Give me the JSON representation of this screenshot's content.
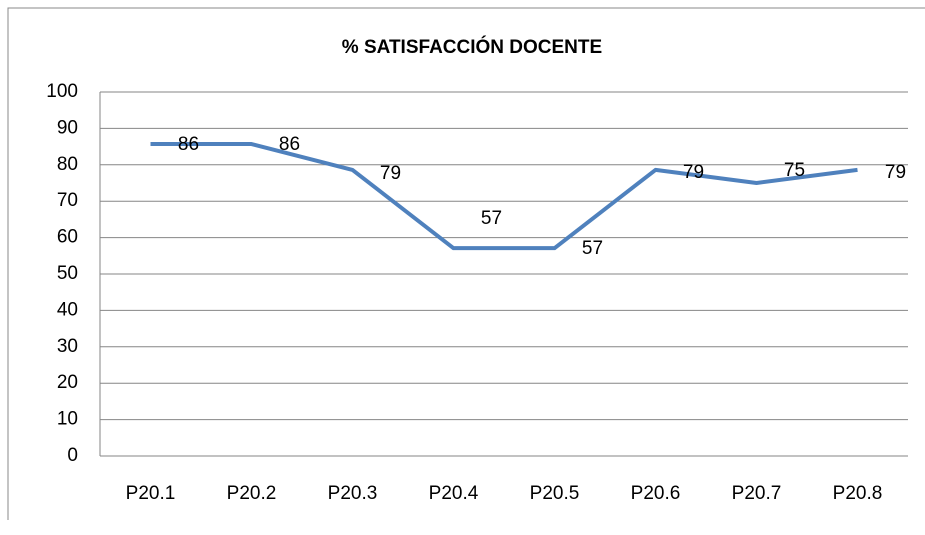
{
  "chart_data": {
    "type": "line",
    "title": "% SATISFACCIÓN DOCENTE",
    "categories": [
      "P20.1",
      "P20.2",
      "P20.3",
      "P20.4",
      "P20.5",
      "P20.6",
      "P20.7",
      "P20.8"
    ],
    "values": [
      85.7,
      85.7,
      78.6,
      57.1,
      57.1,
      78.6,
      75,
      78.6
    ],
    "value_labels": [
      "86",
      "86",
      "79",
      "57",
      "57",
      "79",
      "75",
      "79"
    ],
    "color": "#4f81bd",
    "ylim": [
      0,
      100
    ],
    "yticks": [
      0,
      10,
      20,
      30,
      40,
      50,
      60,
      70,
      80,
      90,
      100
    ],
    "grid": true
  }
}
